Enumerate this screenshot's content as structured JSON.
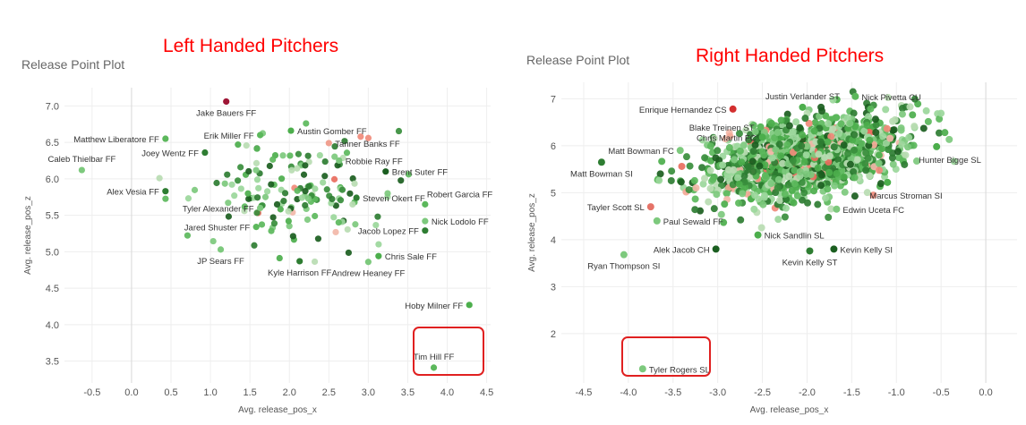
{
  "colors": {
    "headline": "#ff0000",
    "subtitle": "#666666",
    "highlight_box": "#e02020",
    "grid": "#eeeeee",
    "tick_text": "#555555",
    "label_text": "#333333"
  },
  "left": {
    "headline": "Left Handed Pitchers",
    "title": "Release Point Plot",
    "highlight_label": "Tim Hill FF"
  },
  "right": {
    "headline": "Right Handed Pitchers",
    "title": "Release Point Plot",
    "highlight_label": "Tyler Rogers SL"
  },
  "chart_data": [
    {
      "type": "scatter",
      "title": "Release Point Plot",
      "xlabel": "Avg. release_pos_x",
      "ylabel": "Avg. release_pos_z",
      "xlim": [
        -0.85,
        4.55
      ],
      "ylim": [
        3.2,
        7.25
      ],
      "xticks": [
        -0.5,
        0.0,
        0.5,
        1.0,
        1.5,
        2.0,
        2.5,
        3.0,
        3.5,
        4.0,
        4.5
      ],
      "xtick_labels": [
        "-0.5",
        "0.0",
        "0.5",
        "1.0",
        "1.5",
        "2.0",
        "2.5",
        "3.0",
        "3.5",
        "4.0",
        "4.5"
      ],
      "yticks": [
        3.5,
        4.0,
        4.5,
        5.0,
        5.5,
        6.0,
        6.5,
        7.0
      ],
      "ytick_labels": [
        "3.5",
        "4.0",
        "4.5",
        "5.0",
        "5.5",
        "6.0",
        "6.5",
        "7.0"
      ],
      "grid": true,
      "highlighted_point": "Tim Hill FF",
      "labeled_points": [
        {
          "label": "Jake Bauers FF",
          "x": 1.2,
          "y": 7.06,
          "color": "#9e1535",
          "side": "below"
        },
        {
          "label": "Matthew Liberatore FF",
          "x": 0.43,
          "y": 6.55,
          "color": "#5cb85c",
          "side": "left"
        },
        {
          "label": "Erik Miller FF",
          "x": 1.63,
          "y": 6.6,
          "color": "#5cb85c",
          "side": "left"
        },
        {
          "label": "Austin Gomber FF",
          "x": 2.02,
          "y": 6.66,
          "color": "#4cae4c",
          "side": "right"
        },
        {
          "label": "Tanner Banks FF",
          "x": 2.5,
          "y": 6.49,
          "color": "#f0a090",
          "side": "right"
        },
        {
          "label": "Joey Wentz FF",
          "x": 0.93,
          "y": 6.36,
          "color": "#2e7d32",
          "side": "left"
        },
        {
          "label": "Caleb Thielbar FF",
          "x": -0.63,
          "y": 6.12,
          "color": "#7dc97d",
          "side": "above"
        },
        {
          "label": "Robbie Ray FF",
          "x": 2.63,
          "y": 6.25,
          "color": "#7dc97d",
          "side": "right"
        },
        {
          "label": "Brent Suter FF",
          "x": 3.22,
          "y": 6.1,
          "color": "#1b5e20",
          "side": "right"
        },
        {
          "label": "Alex Vesia FF",
          "x": 0.43,
          "y": 5.83,
          "color": "#2e7d32",
          "side": "left"
        },
        {
          "label": "Steven Okert FF",
          "x": 2.85,
          "y": 5.74,
          "color": "#2e7d32",
          "side": "right"
        },
        {
          "label": "Robert Garcia FF",
          "x": 3.72,
          "y": 5.65,
          "color": "#5cb85c",
          "side": "right-up"
        },
        {
          "label": "Tyler Alexander FF",
          "x": 1.63,
          "y": 5.6,
          "color": "#7dc97d",
          "side": "left"
        },
        {
          "label": "Jared Shuster FF",
          "x": 1.58,
          "y": 5.34,
          "color": "#5cb85c",
          "side": "left"
        },
        {
          "label": "Nick Lodolo FF",
          "x": 3.72,
          "y": 5.42,
          "color": "#7dc97d",
          "side": "right"
        },
        {
          "label": "Jacob Lopez FF",
          "x": 3.72,
          "y": 5.29,
          "color": "#2e7d32",
          "side": "left"
        },
        {
          "label": "JP Sears FF",
          "x": 1.13,
          "y": 5.03,
          "color": "#7dc97d",
          "side": "below"
        },
        {
          "label": "Chris Sale FF",
          "x": 3.13,
          "y": 4.94,
          "color": "#4cae4c",
          "side": "right"
        },
        {
          "label": "Kyle Harrison FF",
          "x": 2.13,
          "y": 4.87,
          "color": "#2e7d32",
          "side": "below"
        },
        {
          "label": "Andrew Heaney FF",
          "x": 3.0,
          "y": 4.86,
          "color": "#7dc97d",
          "side": "below"
        },
        {
          "label": "Hoby Milner FF",
          "x": 4.28,
          "y": 4.27,
          "color": "#4cae4c",
          "side": "left"
        },
        {
          "label": "Tim Hill FF",
          "x": 3.83,
          "y": 3.41,
          "color": "#5cb85c",
          "side": "above"
        }
      ]
    },
    {
      "type": "scatter",
      "title": "Release Point Plot",
      "xlabel": "Avg. release_pos_x",
      "ylabel": "Avg. release_pos_z",
      "xlim": [
        -4.75,
        0.35
      ],
      "ylim": [
        0.95,
        7.35
      ],
      "xticks": [
        -4.5,
        -4.0,
        -3.5,
        -3.0,
        -2.5,
        -2.0,
        -1.5,
        -1.0,
        -0.5,
        0.0
      ],
      "xtick_labels": [
        "-4.5",
        "-4.0",
        "-3.5",
        "-3.0",
        "-2.5",
        "-2.0",
        "-1.5",
        "-1.0",
        "-0.5",
        "0.0"
      ],
      "yticks": [
        2,
        3,
        4,
        5,
        6,
        7
      ],
      "ytick_labels": [
        "2",
        "3",
        "4",
        "5",
        "6",
        "7"
      ],
      "grid": true,
      "highlighted_point": "Tyler Rogers SL",
      "labeled_points": [
        {
          "label": "Nick Pivetta CU",
          "x": -1.46,
          "y": 7.05,
          "color": "#5cb85c",
          "side": "right"
        },
        {
          "label": "Justin Verlander ST",
          "x": -2.05,
          "y": 6.82,
          "color": "#4cae4c",
          "side": "above"
        },
        {
          "label": "Enrique Hernandez CS",
          "x": -2.83,
          "y": 6.78,
          "color": "#d32f2f",
          "side": "left"
        },
        {
          "label": "Blake Treinen ST",
          "x": -2.52,
          "y": 6.4,
          "color": "#5cb85c",
          "side": "left"
        },
        {
          "label": "Chris Martin FC",
          "x": -2.5,
          "y": 6.18,
          "color": "#4cae4c",
          "side": "left"
        },
        {
          "label": "Matt Bowman FC",
          "x": -3.42,
          "y": 5.9,
          "color": "#7dc97d",
          "side": "left"
        },
        {
          "label": "Hunter Bigge SL",
          "x": -0.55,
          "y": 5.98,
          "color": "#4cae4c",
          "side": "below-right"
        },
        {
          "label": "Matt Bowman SI",
          "x": -4.3,
          "y": 5.65,
          "color": "#2e7d32",
          "side": "below"
        },
        {
          "label": "Marcus Stroman SI",
          "x": -1.1,
          "y": 5.22,
          "color": "#4cae4c",
          "side": "below-right"
        },
        {
          "label": "Tayler Scott SL",
          "x": -3.75,
          "y": 4.7,
          "color": "#e57368",
          "side": "left"
        },
        {
          "label": "Edwin Uceta FC",
          "x": -1.67,
          "y": 4.65,
          "color": "#7dc97d",
          "side": "right"
        },
        {
          "label": "Paul Sewald FF",
          "x": -3.68,
          "y": 4.4,
          "color": "#7dc97d",
          "side": "right"
        },
        {
          "label": "Nick Sandlin SL",
          "x": -2.55,
          "y": 4.1,
          "color": "#4cae4c",
          "side": "right"
        },
        {
          "label": "Alek Jacob CH",
          "x": -3.02,
          "y": 3.8,
          "color": "#1b5e20",
          "side": "left"
        },
        {
          "label": "Kevin Kelly SI",
          "x": -1.7,
          "y": 3.8,
          "color": "#1b5e20",
          "side": "right"
        },
        {
          "label": "Kevin Kelly ST",
          "x": -1.97,
          "y": 3.76,
          "color": "#2e7d32",
          "side": "below"
        },
        {
          "label": "Ryan Thompson SI",
          "x": -4.05,
          "y": 3.68,
          "color": "#7dc97d",
          "side": "below"
        },
        {
          "label": "Tyler Rogers SL",
          "x": -3.84,
          "y": 1.25,
          "color": "#7dc97d",
          "side": "right"
        }
      ]
    }
  ]
}
